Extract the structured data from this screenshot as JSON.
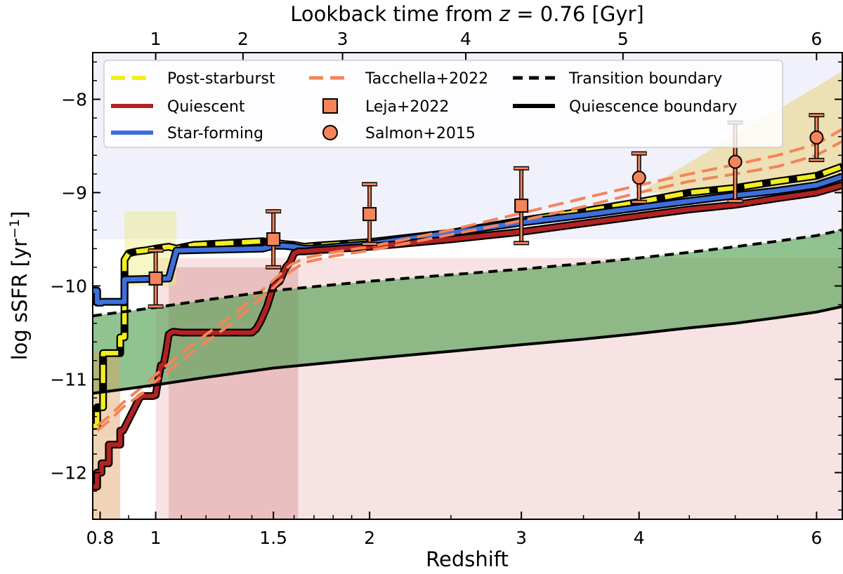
{
  "chart_data": {
    "type": "line",
    "xlabel": "Redshift",
    "ylabel": "log sSFR [yr",
    "ylabel_sup": "−1",
    "ylabel_close": "]",
    "top_xlabel_prefix": "Lookback time from ",
    "top_xlabel_math": "z",
    "top_xlabel_suffix": " = 0.76 [Gyr]",
    "x_scale": "log(1+z)",
    "xlim": [
      0.775,
      6.35
    ],
    "ylim": [
      -12.5,
      -7.5
    ],
    "x_ticks": [
      {
        "value": 0.8,
        "label": "0.8"
      },
      {
        "value": 1,
        "label": "1"
      },
      {
        "value": 1.5,
        "label": "1.5"
      },
      {
        "value": 2,
        "label": "2"
      },
      {
        "value": 3,
        "label": "3"
      },
      {
        "value": 4,
        "label": "4"
      },
      {
        "value": 6,
        "label": "6"
      }
    ],
    "y_ticks": [
      {
        "value": -12,
        "label": "−12"
      },
      {
        "value": -11,
        "label": "−11"
      },
      {
        "value": -10,
        "label": "−10"
      },
      {
        "value": -9,
        "label": "−9"
      },
      {
        "value": -8,
        "label": "−8"
      }
    ],
    "top_ticks": [
      {
        "z": 1.0,
        "label": "1"
      },
      {
        "z": 1.36,
        "label": "2"
      },
      {
        "z": 1.85,
        "label": "3"
      },
      {
        "z": 2.6,
        "label": "4"
      },
      {
        "z": 3.85,
        "label": "5"
      },
      {
        "z": 6.0,
        "label": "6"
      }
    ],
    "legend": [
      {
        "label": "Post-starburst",
        "color": "#f2ee1f",
        "style": "dashed-line"
      },
      {
        "label": "Quiescent",
        "color": "#b22222",
        "style": "solid-line"
      },
      {
        "label": "Star-forming",
        "color": "#3d6fdc",
        "style": "solid-line"
      },
      {
        "label": "Tacchella+2022",
        "color": "#f4845a",
        "style": "dashed-line"
      },
      {
        "label": "Leja+2022",
        "color": "#f4845a",
        "style": "square"
      },
      {
        "label": "Salmon+2015",
        "color": "#f4845a",
        "style": "circle"
      },
      {
        "label": "Transition boundary",
        "color": "#000000",
        "style": "dashed-line"
      },
      {
        "label": "Quiescence boundary",
        "color": "#000000",
        "style": "solid-line"
      }
    ],
    "series": [
      {
        "name": "Post-starburst",
        "color": "#f2ee1f",
        "style": "dashed",
        "x": [
          0.775,
          0.79,
          0.79,
          0.81,
          0.81,
          0.87,
          0.87,
          0.885,
          0.885,
          0.9,
          0.93,
          0.96,
          1.0,
          1.05,
          1.08,
          1.15,
          1.3,
          1.45,
          1.55,
          1.6,
          1.65,
          1.7,
          2.0,
          2.5,
          3.0,
          3.5,
          4.0,
          4.5,
          5.0,
          5.5,
          6.0,
          6.35
        ],
        "y": [
          -11.5,
          -11.5,
          -11.3,
          -11.3,
          -10.72,
          -10.72,
          -10.55,
          -10.55,
          -9.72,
          -9.65,
          -9.63,
          -9.62,
          -9.6,
          -9.58,
          -9.6,
          -9.56,
          -9.54,
          -9.52,
          -9.55,
          -9.56,
          -9.58,
          -9.57,
          -9.53,
          -9.43,
          -9.3,
          -9.2,
          -9.1,
          -9.0,
          -8.95,
          -8.88,
          -8.82,
          -8.72
        ]
      },
      {
        "name": "Star-forming",
        "color": "#3d6fdc",
        "style": "solid",
        "x": [
          0.775,
          0.79,
          0.79,
          0.805,
          0.805,
          0.885,
          0.885,
          1.05,
          1.08,
          1.45,
          1.5,
          1.55,
          1.6,
          1.65,
          1.7,
          2.0,
          2.5,
          3.0,
          3.5,
          4.0,
          4.5,
          5.0,
          5.5,
          6.0,
          6.35
        ],
        "y": [
          -10.05,
          -10.05,
          -10.18,
          -10.18,
          -10.17,
          -10.17,
          -9.93,
          -9.92,
          -9.62,
          -9.6,
          -9.57,
          -9.57,
          -9.58,
          -9.6,
          -9.6,
          -9.55,
          -9.43,
          -9.32,
          -9.24,
          -9.16,
          -9.09,
          -9.03,
          -8.98,
          -8.92,
          -8.83
        ]
      },
      {
        "name": "Quiescent",
        "color": "#b22222",
        "style": "solid",
        "x": [
          0.775,
          0.79,
          0.79,
          0.805,
          0.805,
          0.83,
          0.83,
          0.87,
          0.87,
          0.88,
          0.88,
          0.94,
          0.95,
          0.99,
          1.0,
          1.01,
          1.02,
          1.03,
          1.04,
          1.05,
          1.06,
          1.07,
          1.1,
          1.2,
          1.3,
          1.4,
          1.42,
          1.44,
          1.47,
          1.5,
          1.53,
          1.56,
          1.58,
          1.6,
          1.62,
          1.65,
          1.7,
          2.0,
          2.5,
          3.0,
          3.5,
          4.0,
          4.5,
          5.0,
          5.5,
          6.0,
          6.35
        ],
        "y": [
          -12.15,
          -12.15,
          -12.0,
          -12.0,
          -11.9,
          -11.9,
          -11.7,
          -11.7,
          -11.55,
          -11.55,
          -11.55,
          -11.2,
          -11.18,
          -11.18,
          -11.17,
          -11.0,
          -10.85,
          -10.85,
          -10.7,
          -10.52,
          -10.5,
          -10.49,
          -10.5,
          -10.5,
          -10.5,
          -10.5,
          -10.46,
          -10.38,
          -10.22,
          -10.0,
          -9.95,
          -9.8,
          -9.75,
          -9.65,
          -9.63,
          -9.63,
          -9.62,
          -9.58,
          -9.5,
          -9.42,
          -9.33,
          -9.25,
          -9.18,
          -9.13,
          -9.06,
          -9.0,
          -8.92
        ]
      },
      {
        "name": "Tacchella+2022",
        "color": "#f4845a",
        "style": "dashed",
        "x": [
          0.79,
          0.83,
          0.88,
          0.95,
          1.0,
          1.1,
          1.2,
          1.3,
          1.4,
          1.5,
          1.58,
          1.65,
          1.8,
          2.0,
          2.5,
          3.0,
          3.5,
          4.0,
          4.5,
          5.0,
          5.5,
          6.0,
          6.35
        ],
        "y": [
          -11.55,
          -11.45,
          -11.3,
          -11.15,
          -11.02,
          -10.8,
          -10.6,
          -10.42,
          -10.22,
          -10.02,
          -9.85,
          -9.75,
          -9.68,
          -9.62,
          -9.45,
          -9.3,
          -9.15,
          -9.0,
          -8.88,
          -8.8,
          -8.72,
          -8.6,
          -8.45
        ]
      },
      {
        "name": "Tacchella+2022 (2)",
        "color": "#f4845a",
        "style": "dashed",
        "x": [
          0.79,
          0.83,
          0.88,
          0.95,
          1.0,
          1.1,
          1.2,
          1.3,
          1.4,
          1.5,
          1.58,
          1.65,
          1.8,
          2.0,
          2.5,
          3.0,
          3.5,
          4.0,
          4.5,
          5.0,
          5.5,
          6.0,
          6.35
        ],
        "y": [
          -11.5,
          -11.4,
          -11.25,
          -11.08,
          -10.95,
          -10.72,
          -10.52,
          -10.34,
          -10.14,
          -9.94,
          -9.78,
          -9.7,
          -9.64,
          -9.58,
          -9.4,
          -9.22,
          -9.06,
          -8.92,
          -8.8,
          -8.7,
          -8.6,
          -8.48,
          -8.32
        ]
      },
      {
        "name": "Transition boundary",
        "color": "#000000",
        "style": "dashed",
        "x": [
          0.775,
          0.9,
          1.0,
          1.2,
          1.5,
          2.0,
          2.5,
          3.0,
          3.5,
          4.0,
          4.5,
          5.0,
          5.5,
          6.0,
          6.35
        ],
        "y": [
          -10.32,
          -10.27,
          -10.23,
          -10.15,
          -10.05,
          -9.95,
          -9.88,
          -9.82,
          -9.76,
          -9.7,
          -9.64,
          -9.58,
          -9.52,
          -9.46,
          -9.4
        ]
      },
      {
        "name": "Quiescence boundary",
        "color": "#000000",
        "style": "solid",
        "x": [
          0.775,
          0.9,
          1.0,
          1.2,
          1.5,
          2.0,
          2.5,
          3.0,
          3.5,
          4.0,
          4.5,
          5.0,
          5.5,
          6.0,
          6.35
        ],
        "y": [
          -11.15,
          -11.1,
          -11.06,
          -10.98,
          -10.88,
          -10.78,
          -10.7,
          -10.63,
          -10.57,
          -10.51,
          -10.45,
          -10.4,
          -10.34,
          -10.28,
          -10.22
        ]
      }
    ],
    "leja2022": {
      "name": "Leja+2022",
      "color": "#f4845a",
      "x": [
        1.0,
        1.5,
        2.0,
        3.0
      ],
      "y": [
        -9.92,
        -9.5,
        -9.23,
        -9.14
      ],
      "yerr_low": [
        0.3,
        0.3,
        0.32,
        0.4
      ],
      "yerr_high": [
        0.3,
        0.3,
        0.32,
        0.4
      ]
    },
    "salmon2015": {
      "name": "Salmon+2015",
      "color": "#f4845a",
      "x": [
        4.0,
        5.0,
        6.0
      ],
      "y": [
        -8.84,
        -8.67,
        -8.41
      ],
      "yerr_low": [
        0.26,
        0.42,
        0.24
      ],
      "yerr_high": [
        0.26,
        0.42,
        0.24
      ]
    }
  }
}
